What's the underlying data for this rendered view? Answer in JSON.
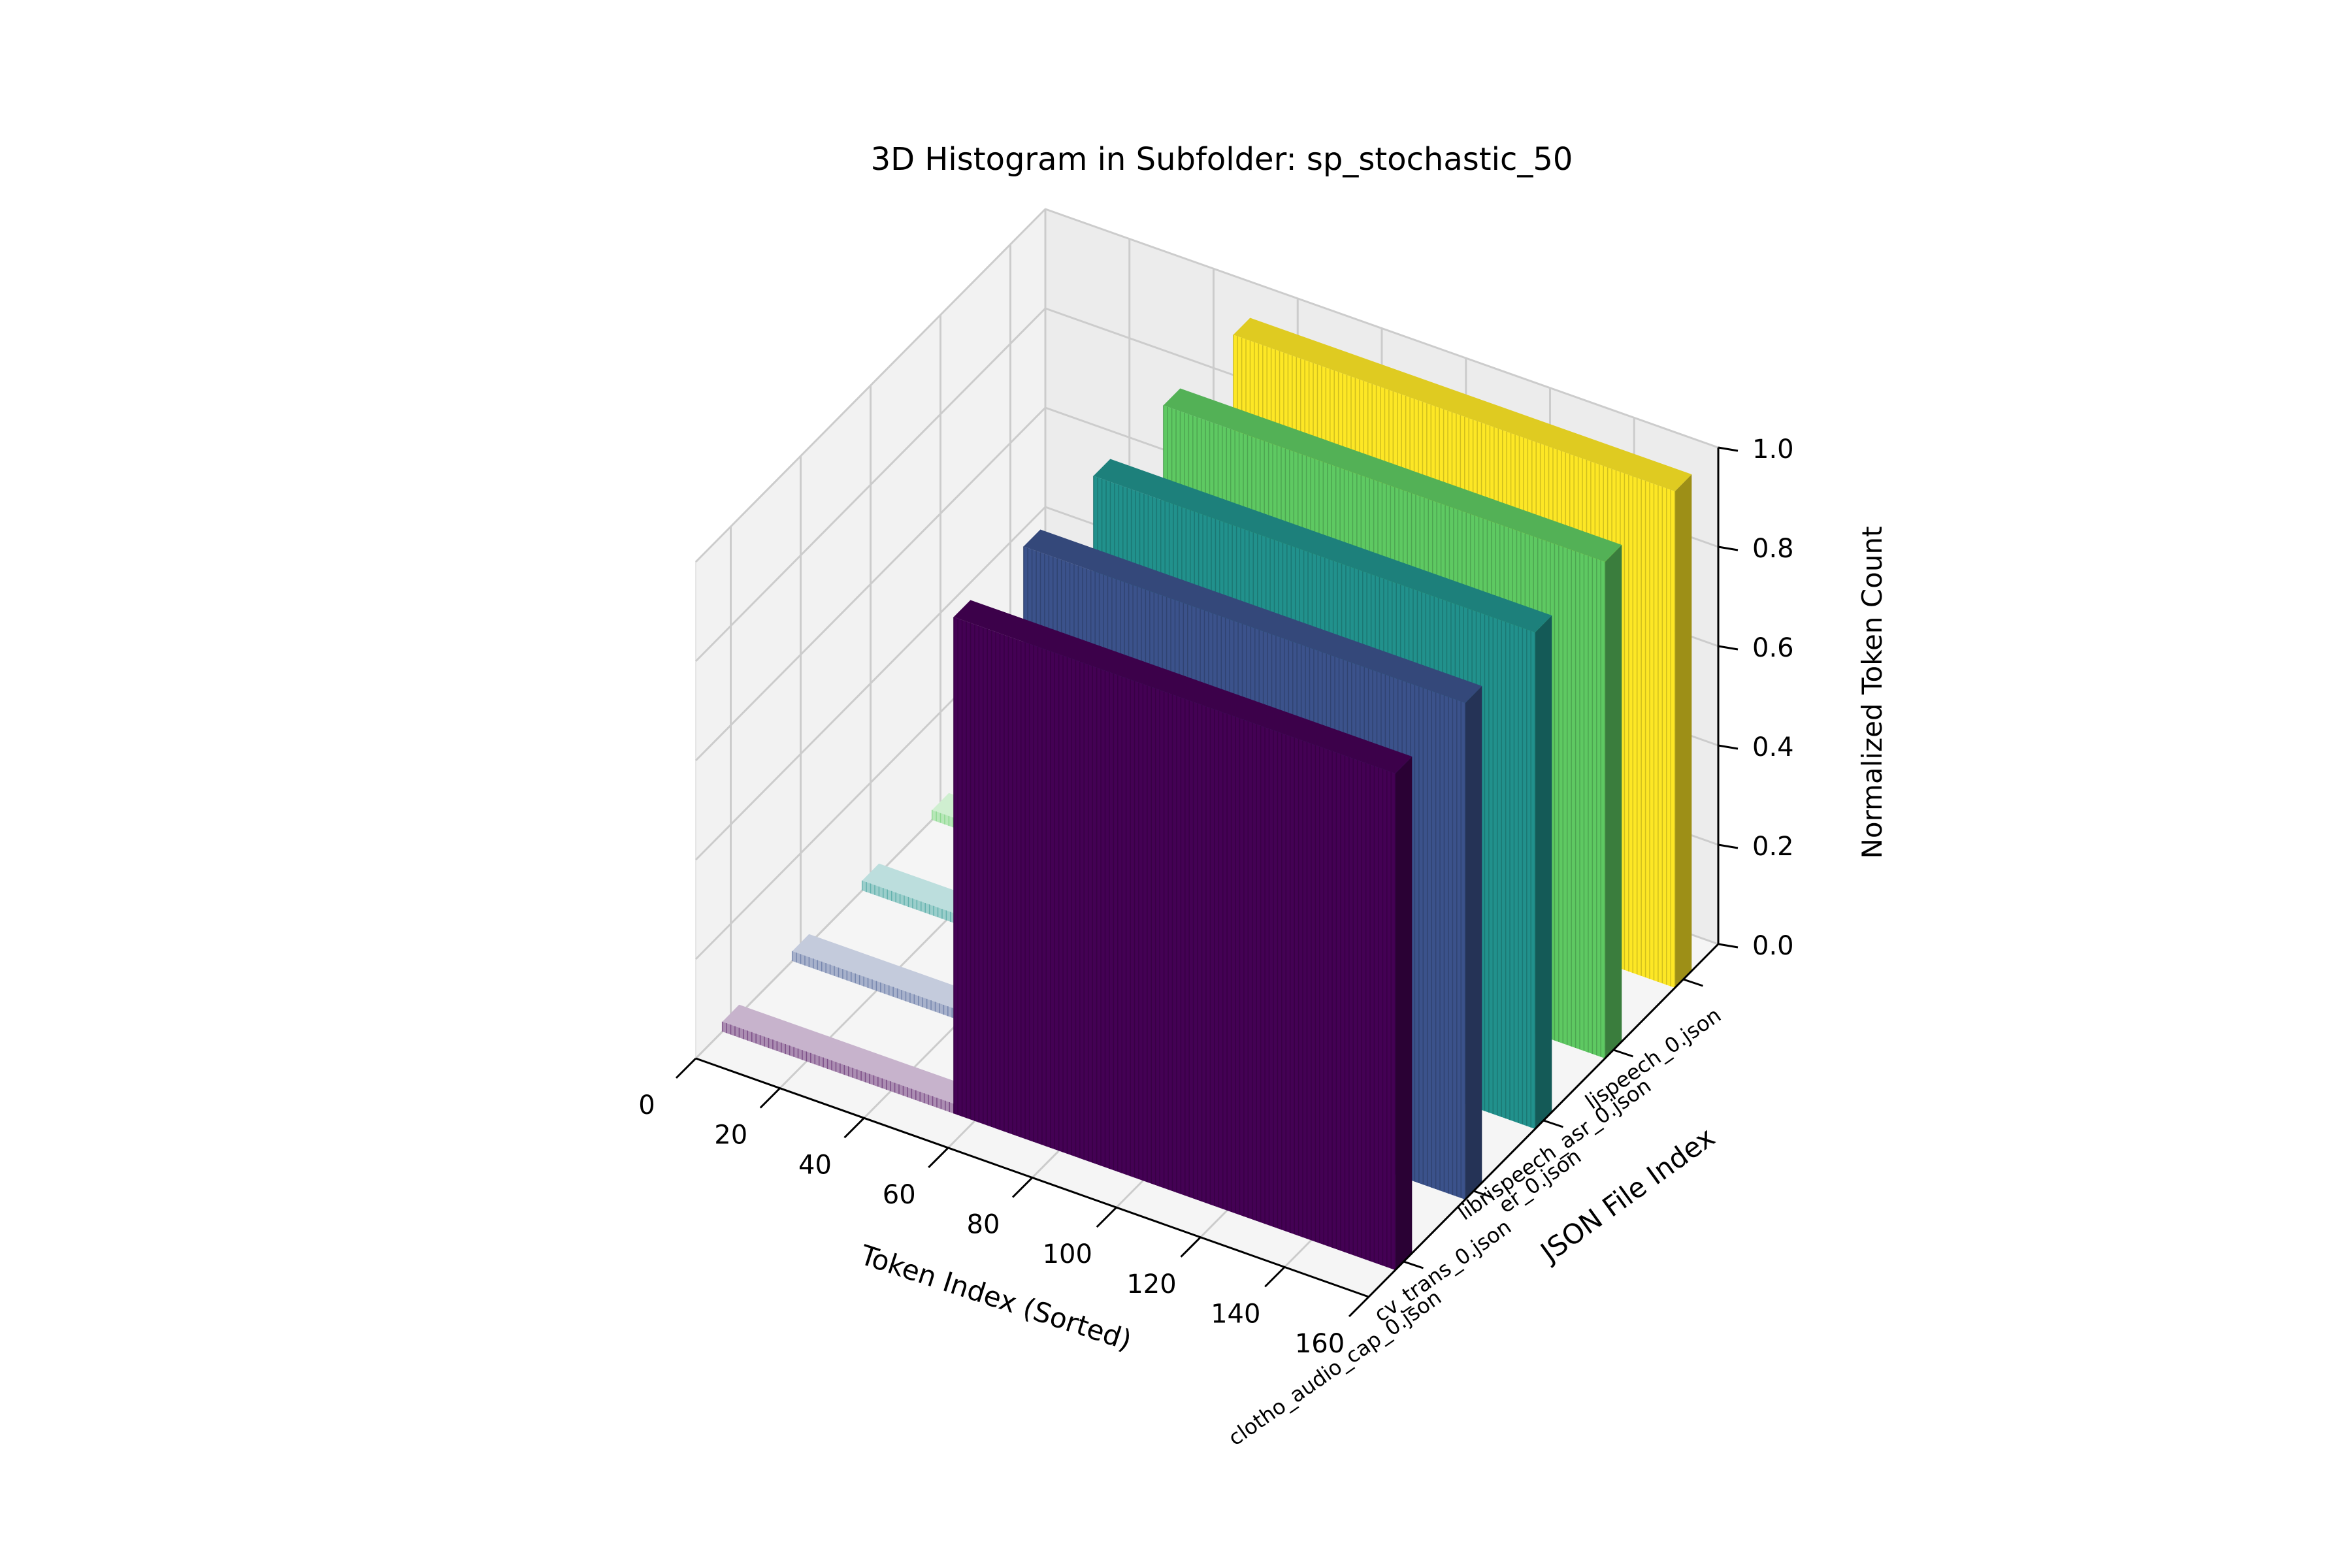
{
  "chart_data": {
    "type": "bar3d",
    "title": "3D Histogram in Subfolder: sp_stochastic_50",
    "xlabel": "Token Index (Sorted)",
    "ylabel": "JSON File Index",
    "zlabel": "Normalized Token Count",
    "x_ticks": [
      0,
      20,
      40,
      60,
      80,
      100,
      120,
      140,
      160
    ],
    "z_ticks": [
      "0.0",
      "0.2",
      "0.4",
      "0.6",
      "0.8",
      "1.0"
    ],
    "xlim": [
      0,
      160
    ],
    "zlim": [
      0,
      1.0
    ],
    "grid": true,
    "series": [
      {
        "name": "clotho_audio_cap_0.json",
        "color": "#440154",
        "low_range": [
          0,
          55
        ],
        "low_value": 0.02,
        "high_range": [
          55,
          160
        ],
        "high_value": 1.0
      },
      {
        "name": "cv_trans_0.json",
        "color": "#3b528b",
        "low_range": [
          0,
          55
        ],
        "low_value": 0.02,
        "high_range": [
          55,
          160
        ],
        "high_value": 1.0
      },
      {
        "name": "er_0.json",
        "color": "#21918c",
        "low_range": [
          0,
          55
        ],
        "low_value": 0.02,
        "high_range": [
          55,
          160
        ],
        "high_value": 1.0
      },
      {
        "name": "librispeech_asr_0.json",
        "color": "#5ec962",
        "low_range": [
          0,
          55
        ],
        "low_value": 0.02,
        "high_range": [
          55,
          160
        ],
        "high_value": 1.0
      },
      {
        "name": "ljspeech_0.json",
        "color": "#fde725",
        "low_range": [
          0,
          55
        ],
        "low_value": 0.02,
        "high_range": [
          55,
          160
        ],
        "high_value": 1.0
      }
    ]
  }
}
